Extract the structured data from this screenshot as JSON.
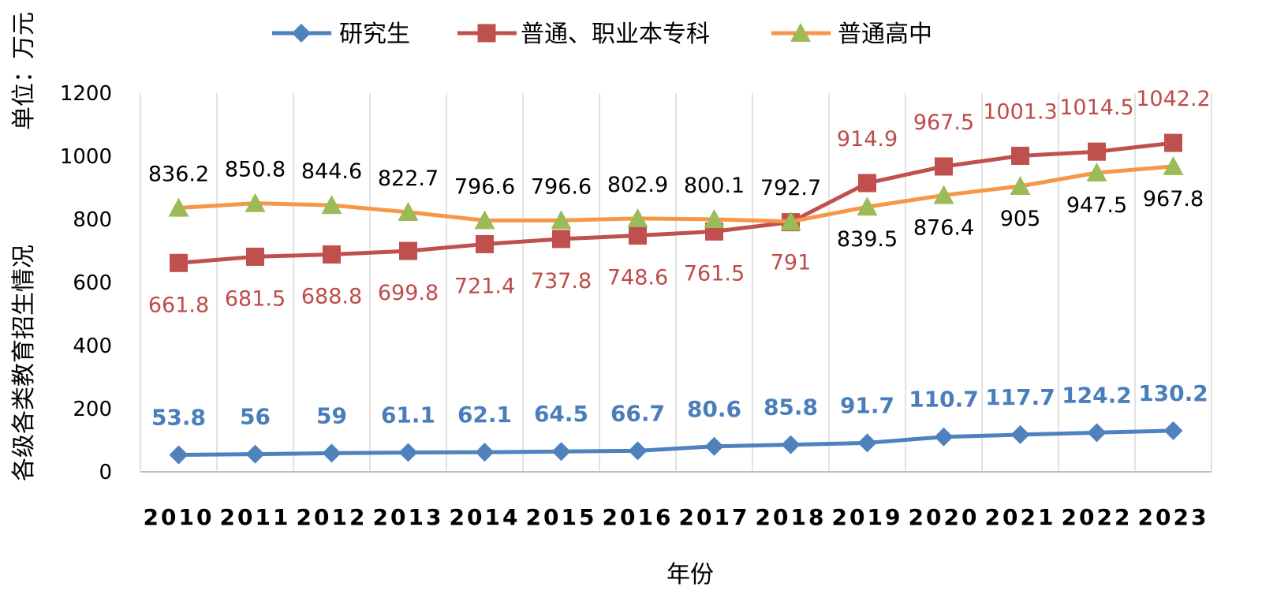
{
  "chart_data": {
    "type": "line",
    "title": "",
    "xlabel": "年份",
    "ylabel": "各级各类教育招生情况",
    "unit_label": "单位：万元",
    "ylim": [
      0,
      1200
    ],
    "yticks": [
      0,
      200,
      400,
      600,
      800,
      1000,
      1200
    ],
    "grid": "vertical",
    "legend_position": "top",
    "categories": [
      "2010",
      "2011",
      "2012",
      "2013",
      "2014",
      "2015",
      "2016",
      "2017",
      "2018",
      "2019",
      "2020",
      "2021",
      "2022",
      "2023"
    ],
    "series": [
      {
        "name": "研究生",
        "marker": "diamond",
        "color": "#4f81bd",
        "label_color": "#4a7ebb",
        "label_position": "above",
        "values": [
          53.8,
          56,
          59,
          61.1,
          62.1,
          64.5,
          66.7,
          80.6,
          85.8,
          91.7,
          110.7,
          117.7,
          124.2,
          130.2
        ]
      },
      {
        "name": "普通、职业本专科",
        "marker": "square",
        "color": "#c0504d",
        "label_color": "#be4b48",
        "label_position": "below-then-above",
        "values": [
          661.8,
          681.5,
          688.8,
          699.8,
          721.4,
          737.8,
          748.6,
          761.5,
          791,
          914.9,
          967.5,
          1001.3,
          1014.5,
          1042.2
        ]
      },
      {
        "name": "普通高中",
        "marker": "triangle",
        "color": "#f79646",
        "marker_color": "#9bbb59",
        "label_color": "#000000",
        "label_position": "above-then-below",
        "values": [
          836.2,
          850.8,
          844.6,
          822.7,
          796.6,
          796.6,
          802.9,
          800.1,
          792.7,
          839.5,
          876.4,
          905,
          947.5,
          967.8
        ]
      }
    ]
  }
}
